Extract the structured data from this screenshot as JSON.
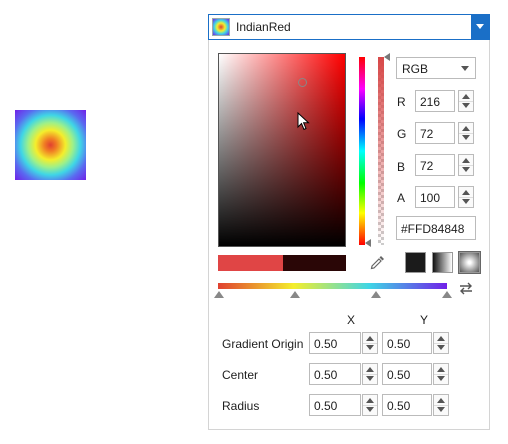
{
  "preview": {
    "icon": "gradient-preview"
  },
  "combo": {
    "color_name": "IndianRed"
  },
  "picker": {
    "mode": "RGB",
    "channels": [
      {
        "label": "R",
        "value": "216"
      },
      {
        "label": "G",
        "value": "72"
      },
      {
        "label": "B",
        "value": "72"
      },
      {
        "label": "A",
        "value": "100"
      }
    ],
    "hex": "#FFD84848",
    "current_color": "#e04545",
    "previous_color": "#2a0606"
  },
  "gradient": {
    "x_header": "X",
    "y_header": "Y",
    "rows": [
      {
        "label": "Gradient Origin",
        "x": "0.50",
        "y": "0.50"
      },
      {
        "label": "Center",
        "x": "0.50",
        "y": "0.50"
      },
      {
        "label": "Radius",
        "x": "0.50",
        "y": "0.50"
      }
    ]
  },
  "colors": {
    "accent": "#1a6fc7",
    "selected": "#d84848"
  }
}
